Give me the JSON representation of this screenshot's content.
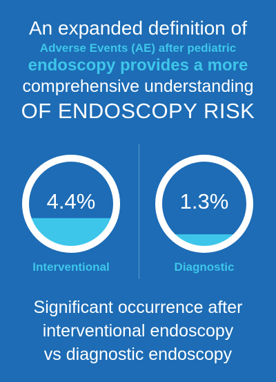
{
  "headline": {
    "line1": "An expanded definition of",
    "line2": "Adverse Events (AE) after pediatric",
    "line3": "endoscopy provides a more",
    "line4": "comprehensive understanding",
    "line5": "OF ENDOSCOPY RISK"
  },
  "colors": {
    "background": "#1d6cb5",
    "accent": "#3ec6ea",
    "ring": "#ffffff"
  },
  "chart_data": {
    "type": "gauge",
    "series": [
      {
        "name": "Interventional",
        "value": 4.4,
        "value_label": "4.4%",
        "fill_fraction": 0.34
      },
      {
        "name": "Diagnostic",
        "value": 1.3,
        "value_label": "1.3%",
        "fill_fraction": 0.16
      }
    ]
  },
  "footer": {
    "line1": "Significant occurrence after",
    "line2": "interventional endoscopy",
    "line3": "vs diagnostic endoscopy"
  }
}
